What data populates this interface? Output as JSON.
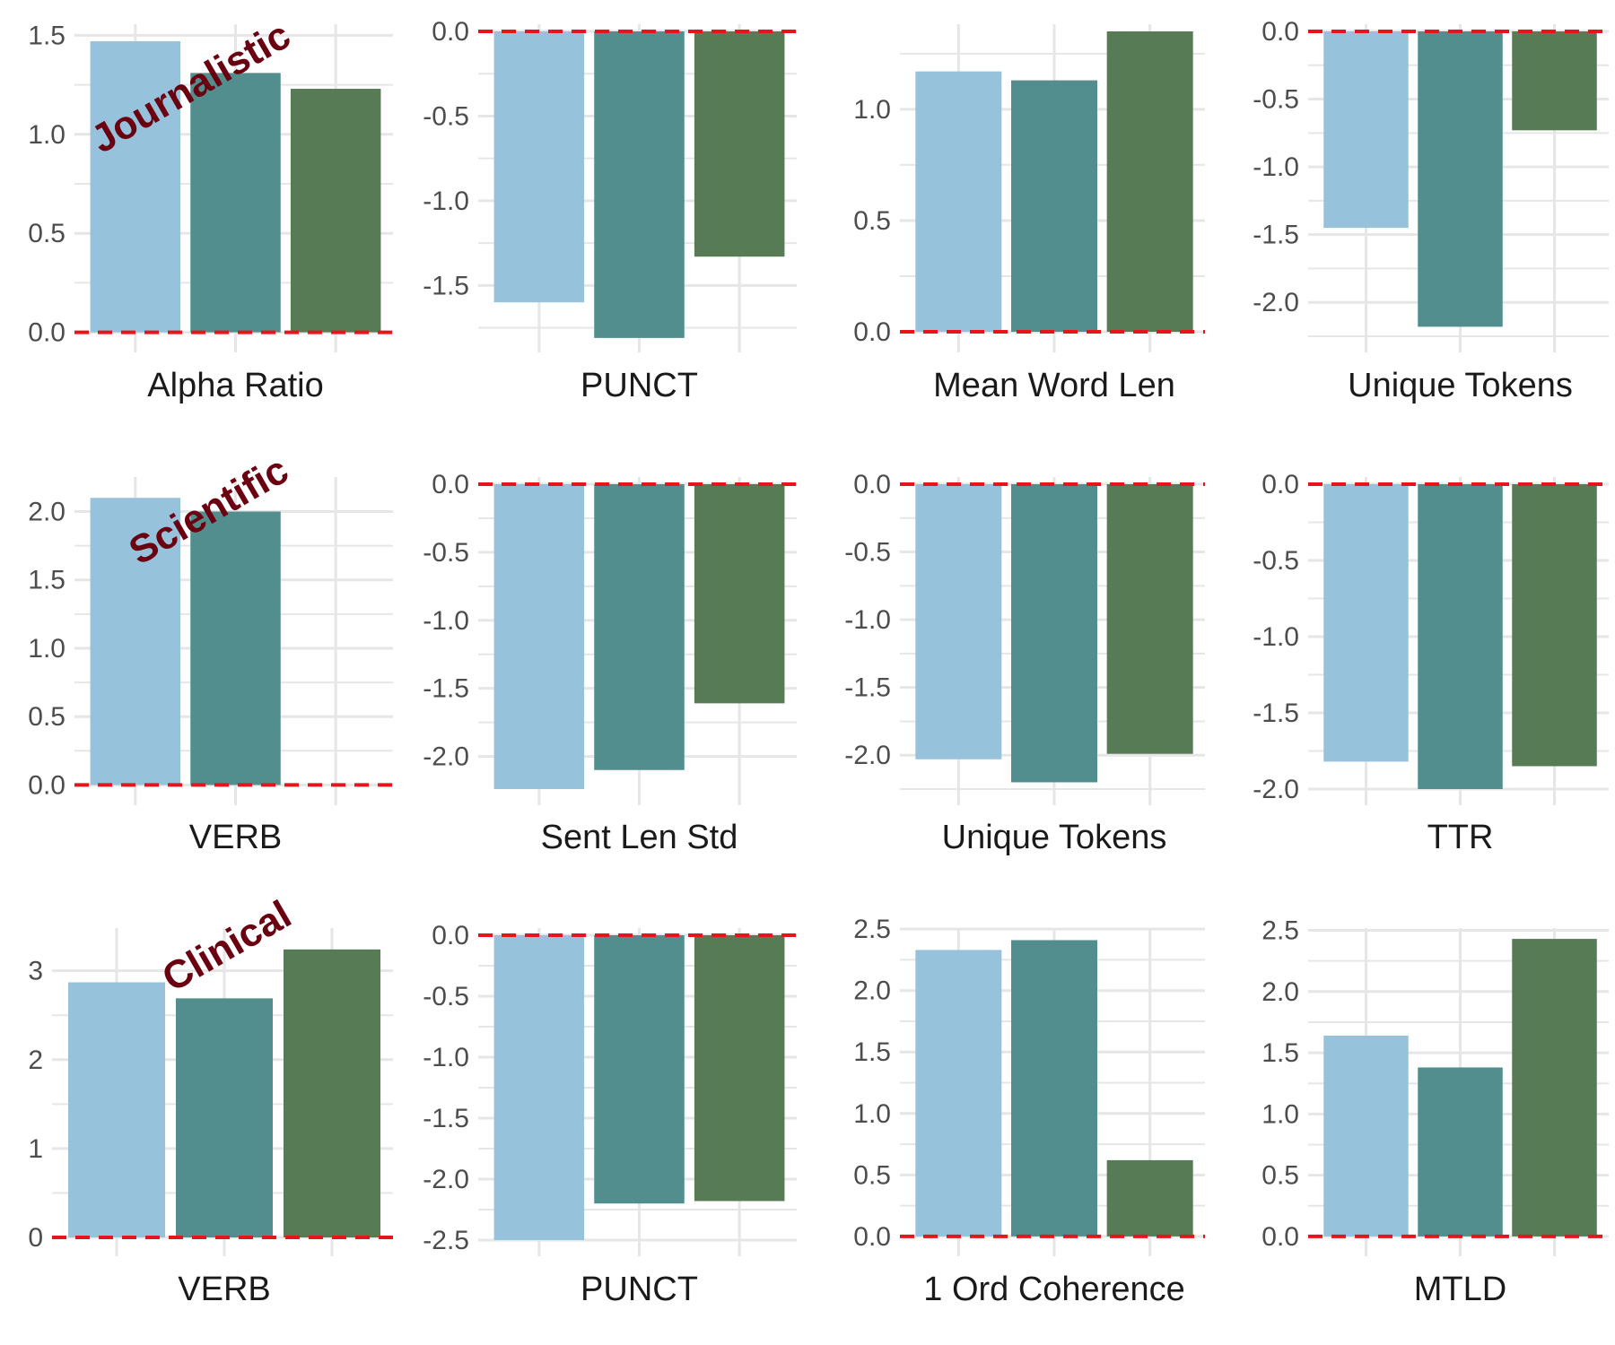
{
  "colors": {
    "series": [
      "#97c2db",
      "#518e8d",
      "#567b55"
    ],
    "grid": "#e6e6e6",
    "zero_line": "#e8141c",
    "tick_text": "#4d4d4d",
    "xlabel_text": "#1a1a1a",
    "row_label": "#6b0010"
  },
  "row_labels": [
    "Journalistic",
    "Scientific",
    "Clinical"
  ],
  "chart_data": [
    {
      "type": "bar",
      "xlabel": "Alpha Ratio",
      "values": [
        1.47,
        1.31,
        1.23
      ],
      "ylim": [
        -0.02,
        1.52
      ],
      "yticks": [
        "0.0",
        "0.5",
        "1.0",
        "1.5"
      ],
      "grid": true
    },
    {
      "type": "bar",
      "xlabel": "PUNCT",
      "values": [
        -1.6,
        -1.81,
        -1.33
      ],
      "ylim": [
        -1.8,
        0.0
      ],
      "yticks": [
        "-1.5",
        "-1.0",
        "-0.5",
        "0.0"
      ],
      "grid": true
    },
    {
      "type": "bar",
      "xlabel": "Mean Word Len",
      "values": [
        1.17,
        1.13,
        1.35
      ],
      "ylim": [
        -0.02,
        1.35
      ],
      "yticks": [
        "0.0",
        "0.5",
        "1.0"
      ],
      "grid": true
    },
    {
      "type": "bar",
      "xlabel": "Unique Tokens",
      "values": [
        -1.45,
        -2.18,
        -0.73
      ],
      "ylim": [
        -2.25,
        0.0
      ],
      "yticks": [
        "-2.0",
        "-1.5",
        "-1.0",
        "-0.5",
        "0.0"
      ],
      "grid": true
    },
    {
      "type": "bar",
      "xlabel": "VERB",
      "values": [
        2.1,
        2.0,
        0.0
      ],
      "ylim": [
        -0.03,
        2.2
      ],
      "yticks": [
        "0.0",
        "0.5",
        "1.0",
        "1.5",
        "2.0"
      ],
      "grid": true
    },
    {
      "type": "bar",
      "xlabel": "Sent Len Std",
      "values": [
        -2.24,
        -2.1,
        -1.61
      ],
      "ylim": [
        -2.24,
        0.0
      ],
      "yticks": [
        "-2.0",
        "-1.5",
        "-1.0",
        "-0.5",
        "0.0"
      ],
      "grid": true
    },
    {
      "type": "bar",
      "xlabel": "Unique Tokens",
      "values": [
        -2.03,
        -2.2,
        -1.99
      ],
      "ylim": [
        -2.25,
        0.0
      ],
      "yticks": [
        "-2.0",
        "-1.5",
        "-1.0",
        "-0.5",
        "0.0"
      ],
      "grid": true
    },
    {
      "type": "bar",
      "xlabel": "TTR",
      "values": [
        -1.82,
        -2.0,
        -1.85
      ],
      "ylim": [
        -2.0,
        0.0
      ],
      "yticks": [
        "-2.0",
        "-1.5",
        "-1.0",
        "-0.5",
        "0.0"
      ],
      "grid": true
    },
    {
      "type": "bar",
      "xlabel": "VERB",
      "values": [
        2.87,
        2.69,
        3.24
      ],
      "ylim": [
        -0.03,
        3.4
      ],
      "yticks": [
        "0",
        "1",
        "2",
        "3"
      ],
      "grid": true
    },
    {
      "type": "bar",
      "xlabel": "PUNCT",
      "values": [
        -2.5,
        -2.2,
        -2.18
      ],
      "ylim": [
        -2.5,
        0.0
      ],
      "yticks": [
        "-2.5",
        "-2.0",
        "-1.5",
        "-1.0",
        "-0.5",
        "0.0"
      ],
      "grid": true
    },
    {
      "type": "bar",
      "xlabel": "1 Ord Coherence",
      "values": [
        2.33,
        2.41,
        0.62
      ],
      "ylim": [
        -0.03,
        2.45
      ],
      "yticks": [
        "0.0",
        "0.5",
        "1.0",
        "1.5",
        "2.0",
        "2.5"
      ],
      "grid": true
    },
    {
      "type": "bar",
      "xlabel": "MTLD",
      "values": [
        1.64,
        1.38,
        2.43
      ],
      "ylim": [
        -0.03,
        2.46
      ],
      "yticks": [
        "0.0",
        "0.5",
        "1.0",
        "1.5",
        "2.0",
        "2.5"
      ],
      "grid": true
    }
  ]
}
